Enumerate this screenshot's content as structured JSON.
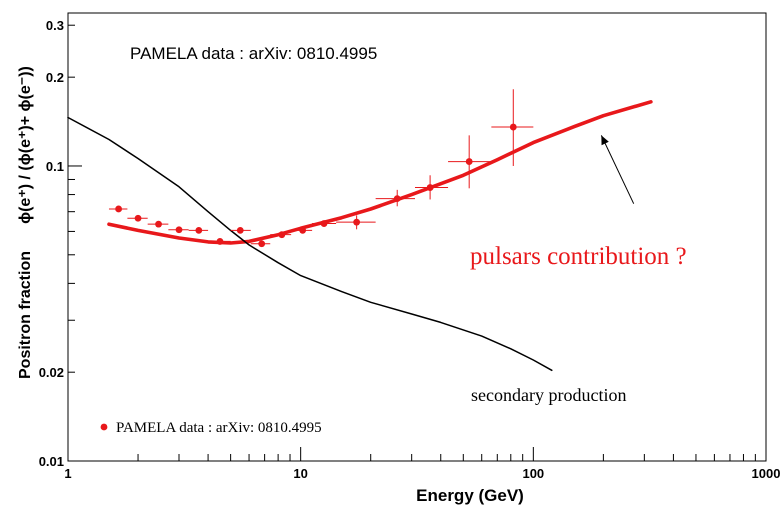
{
  "chart_data": {
    "type": "scatter",
    "x_scale": "log",
    "y_scale": "log",
    "xlim": [
      1,
      1000
    ],
    "ylim": [
      0.01,
      0.33
    ],
    "xlabel": "Energy (GeV)",
    "ylabel": "Positron fraction",
    "ylabel_formula": "ϕ(e⁺) / (ϕ(e⁺)+ ϕ(e⁻))",
    "x_ticks": [
      {
        "value": 1,
        "label": "1"
      },
      {
        "value": 10,
        "label": "10"
      },
      {
        "value": 100,
        "label": "100"
      },
      {
        "value": 1000,
        "label": "1000"
      }
    ],
    "y_ticks": [
      {
        "value": 0.01,
        "label": "0.01"
      },
      {
        "value": 0.02,
        "label": "0.02"
      },
      {
        "value": 0.1,
        "label": "0.1"
      },
      {
        "value": 0.2,
        "label": "0.2"
      },
      {
        "value": 0.3,
        "label": "0.3"
      }
    ],
    "title_text": "PAMELA data : arXiv: 0810.4995",
    "legend": {
      "position": "bottom-left",
      "entry": "PAMELA data : arXiv: 0810.4995",
      "color": "#e8181b"
    },
    "annotations": {
      "pulsars": "pulsars contribution ?",
      "secondary": "secondary production"
    },
    "colors": {
      "data": "#e8181b",
      "model": "#e8181b",
      "secondary": "#000000",
      "annotation": "#e8181b"
    },
    "series": [
      {
        "name": "PAMELA data : arXiv: 0810.4995",
        "kind": "points",
        "points": [
          {
            "x": 1.65,
            "y": 0.0715,
            "xlo": 1.5,
            "xhi": 1.8
          },
          {
            "x": 2.0,
            "y": 0.0665,
            "xlo": 1.8,
            "xhi": 2.2
          },
          {
            "x": 2.45,
            "y": 0.0635,
            "xlo": 2.2,
            "xhi": 2.7
          },
          {
            "x": 3.0,
            "y": 0.0608,
            "xlo": 2.7,
            "xhi": 3.3
          },
          {
            "x": 3.65,
            "y": 0.0605,
            "xlo": 3.3,
            "xhi": 4.0
          },
          {
            "x": 4.5,
            "y": 0.0555,
            "xlo": 4.0,
            "xhi": 5.0
          },
          {
            "x": 5.5,
            "y": 0.0605,
            "xlo": 5.0,
            "xhi": 6.1
          },
          {
            "x": 6.8,
            "y": 0.0545,
            "xlo": 6.1,
            "xhi": 7.4
          },
          {
            "x": 8.3,
            "y": 0.0585,
            "xlo": 7.4,
            "xhi": 9.1
          },
          {
            "x": 10.2,
            "y": 0.0605,
            "xlo": 9.1,
            "xhi": 11.2
          },
          {
            "x": 12.6,
            "y": 0.0638,
            "xlo": 11.2,
            "xhi": 14.2
          },
          {
            "x": 17.4,
            "y": 0.0645,
            "xlo": 14.2,
            "xhi": 21.0,
            "ylo": 0.061,
            "yhi": 0.068
          },
          {
            "x": 26.0,
            "y": 0.0775,
            "xlo": 21.0,
            "xhi": 31.0,
            "ylo": 0.073,
            "yhi": 0.083
          },
          {
            "x": 36.0,
            "y": 0.0845,
            "xlo": 31.0,
            "xhi": 43.0,
            "ylo": 0.077,
            "yhi": 0.093
          },
          {
            "x": 53.0,
            "y": 0.1035,
            "xlo": 43.0,
            "xhi": 66.0,
            "ylo": 0.084,
            "yhi": 0.127
          },
          {
            "x": 82.0,
            "y": 0.1355,
            "xlo": 66.0,
            "xhi": 100.0,
            "ylo": 0.1,
            "yhi": 0.182
          }
        ]
      },
      {
        "kind": "line",
        "color": "#e8181b",
        "points": [
          {
            "x": 1.5,
            "y": 0.0635
          },
          {
            "x": 2.0,
            "y": 0.0605
          },
          {
            "x": 3.0,
            "y": 0.057
          },
          {
            "x": 4.0,
            "y": 0.0553
          },
          {
            "x": 5.0,
            "y": 0.0548
          },
          {
            "x": 6.0,
            "y": 0.0555
          },
          {
            "x": 8.0,
            "y": 0.0585
          },
          {
            "x": 10.0,
            "y": 0.0615
          },
          {
            "x": 15.0,
            "y": 0.0668
          },
          {
            "x": 20.0,
            "y": 0.0715
          },
          {
            "x": 30.0,
            "y": 0.08
          },
          {
            "x": 50.0,
            "y": 0.093
          },
          {
            "x": 70.0,
            "y": 0.105
          },
          {
            "x": 100.0,
            "y": 0.12
          },
          {
            "x": 150.0,
            "y": 0.136
          },
          {
            "x": 200.0,
            "y": 0.148
          },
          {
            "x": 320.0,
            "y": 0.165
          }
        ]
      },
      {
        "kind": "line",
        "color": "#000000",
        "points": [
          {
            "x": 1.0,
            "y": 0.146
          },
          {
            "x": 1.5,
            "y": 0.123
          },
          {
            "x": 2.0,
            "y": 0.106
          },
          {
            "x": 3.0,
            "y": 0.085
          },
          {
            "x": 4.0,
            "y": 0.07
          },
          {
            "x": 5.0,
            "y": 0.0605
          },
          {
            "x": 6.0,
            "y": 0.054
          },
          {
            "x": 8.0,
            "y": 0.047
          },
          {
            "x": 10.0,
            "y": 0.0425
          },
          {
            "x": 15.0,
            "y": 0.0375
          },
          {
            "x": 20.0,
            "y": 0.0345
          },
          {
            "x": 30.0,
            "y": 0.0315
          },
          {
            "x": 40.0,
            "y": 0.0295
          },
          {
            "x": 60.0,
            "y": 0.0265
          },
          {
            "x": 80.0,
            "y": 0.024
          },
          {
            "x": 100.0,
            "y": 0.022
          },
          {
            "x": 120.0,
            "y": 0.0203
          }
        ]
      }
    ],
    "arrow": {
      "from": {
        "x": 270,
        "y": 0.0745
      },
      "to": {
        "x": 196,
        "y": 0.127
      }
    }
  }
}
